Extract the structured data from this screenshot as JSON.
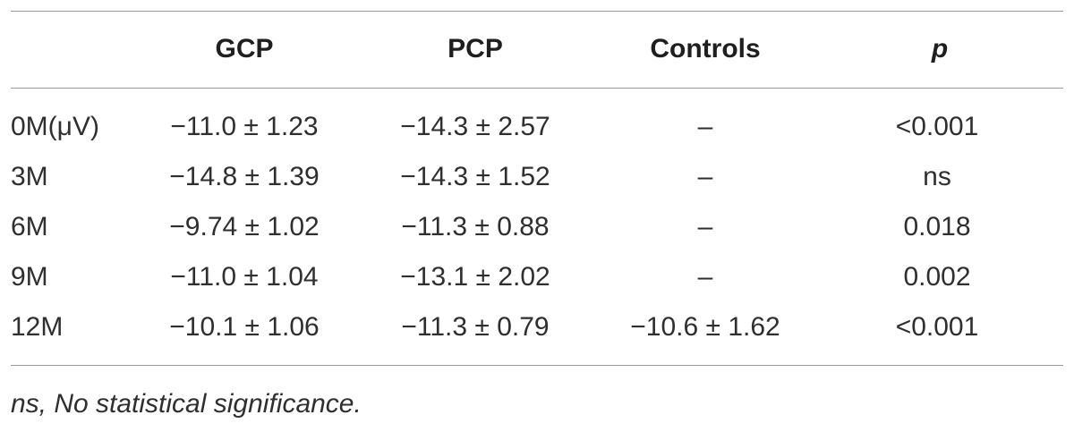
{
  "table": {
    "columns": [
      "GCP",
      "PCP",
      "Controls",
      "p"
    ],
    "rows": [
      [
        "0M(μV)",
        "−11.0 ± 1.23",
        "−14.3 ± 2.57",
        "–",
        "<0.001"
      ],
      [
        "3M",
        "−14.8 ± 1.39",
        "−14.3 ± 1.52",
        "–",
        "ns"
      ],
      [
        "6M",
        "−9.74 ± 1.02",
        "−11.3 ± 0.88",
        "–",
        "0.018"
      ],
      [
        "9M",
        "−11.0 ± 1.04",
        "−13.1 ± 2.02",
        "–",
        "0.002"
      ],
      [
        "12M",
        "−10.1 ± 1.06",
        "−11.3 ± 0.79",
        "−10.6 ± 1.62",
        "<0.001"
      ]
    ]
  },
  "footnote": "ns, No statistical significance."
}
